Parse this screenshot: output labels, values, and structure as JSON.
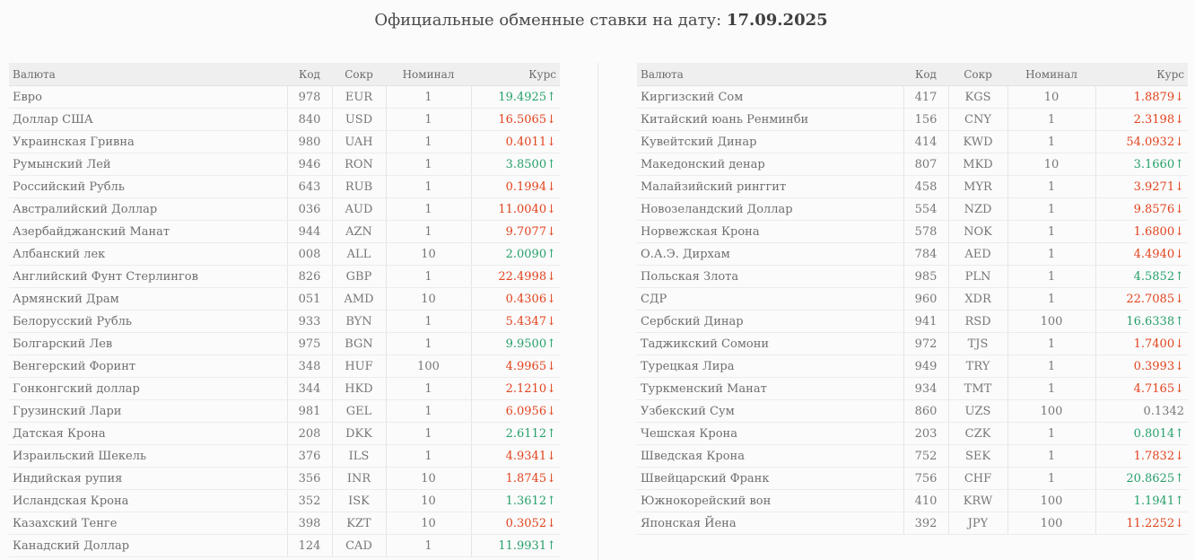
{
  "header": {
    "title": "Официальные обменные ставки на дату:",
    "date": "17.09.2025"
  },
  "columns": {
    "currency": "Валюта",
    "code": "Код",
    "abbr": "Сокр",
    "nominal": "Номинал",
    "rate": "Курс"
  },
  "colors": {
    "up": "#27a06a",
    "down": "#e2431e",
    "header_bg": "#efefef"
  },
  "left_rows": [
    {
      "name": "Евро",
      "code": "978",
      "abbr": "EUR",
      "nominal": "1",
      "rate": "19.4925↑",
      "trend": "up"
    },
    {
      "name": "Доллар США",
      "code": "840",
      "abbr": "USD",
      "nominal": "1",
      "rate": "16.5065↓",
      "trend": "down"
    },
    {
      "name": "Украинская Гривна",
      "code": "980",
      "abbr": "UAH",
      "nominal": "1",
      "rate": "0.4011↓",
      "trend": "down"
    },
    {
      "name": "Румынский Лей",
      "code": "946",
      "abbr": "RON",
      "nominal": "1",
      "rate": "3.8500↑",
      "trend": "up"
    },
    {
      "name": "Российский Рубль",
      "code": "643",
      "abbr": "RUB",
      "nominal": "1",
      "rate": "0.1994↓",
      "trend": "down"
    },
    {
      "name": "Австралийский Доллар",
      "code": "036",
      "abbr": "AUD",
      "nominal": "1",
      "rate": "11.0040↓",
      "trend": "down"
    },
    {
      "name": "Азербайджанский Манат",
      "code": "944",
      "abbr": "AZN",
      "nominal": "1",
      "rate": "9.7077↓",
      "trend": "down"
    },
    {
      "name": "Албанский лек",
      "code": "008",
      "abbr": "ALL",
      "nominal": "10",
      "rate": "2.0090↑",
      "trend": "up"
    },
    {
      "name": "Английский Фунт Стерлингов",
      "code": "826",
      "abbr": "GBP",
      "nominal": "1",
      "rate": "22.4998↓",
      "trend": "down"
    },
    {
      "name": "Армянский Драм",
      "code": "051",
      "abbr": "AMD",
      "nominal": "10",
      "rate": "0.4306↓",
      "trend": "down"
    },
    {
      "name": "Белорусский Рубль",
      "code": "933",
      "abbr": "BYN",
      "nominal": "1",
      "rate": "5.4347↓",
      "trend": "down"
    },
    {
      "name": "Болгарский Лев",
      "code": "975",
      "abbr": "BGN",
      "nominal": "1",
      "rate": "9.9500↑",
      "trend": "up"
    },
    {
      "name": "Венгерский Форинт",
      "code": "348",
      "abbr": "HUF",
      "nominal": "100",
      "rate": "4.9965↓",
      "trend": "down"
    },
    {
      "name": "Гонконгский доллар",
      "code": "344",
      "abbr": "HKD",
      "nominal": "1",
      "rate": "2.1210↓",
      "trend": "down"
    },
    {
      "name": "Грузинский Лари",
      "code": "981",
      "abbr": "GEL",
      "nominal": "1",
      "rate": "6.0956↓",
      "trend": "down"
    },
    {
      "name": "Датская Крона",
      "code": "208",
      "abbr": "DKK",
      "nominal": "1",
      "rate": "2.6112↑",
      "trend": "up"
    },
    {
      "name": "Израильский Шекель",
      "code": "376",
      "abbr": "ILS",
      "nominal": "1",
      "rate": "4.9341↓",
      "trend": "down"
    },
    {
      "name": "Индийская рупия",
      "code": "356",
      "abbr": "INR",
      "nominal": "10",
      "rate": "1.8745↓",
      "trend": "down"
    },
    {
      "name": "Исландская Крона",
      "code": "352",
      "abbr": "ISK",
      "nominal": "10",
      "rate": "1.3612↑",
      "trend": "up"
    },
    {
      "name": "Казахский Тенге",
      "code": "398",
      "abbr": "KZT",
      "nominal": "10",
      "rate": "0.3052↓",
      "trend": "down"
    },
    {
      "name": "Канадский Доллар",
      "code": "124",
      "abbr": "CAD",
      "nominal": "1",
      "rate": "11.9931↑",
      "trend": "up"
    }
  ],
  "right_rows": [
    {
      "name": "Киргизский Сом",
      "code": "417",
      "abbr": "KGS",
      "nominal": "10",
      "rate": "1.8879↓",
      "trend": "down"
    },
    {
      "name": "Китайский юань Ренминби",
      "code": "156",
      "abbr": "CNY",
      "nominal": "1",
      "rate": "2.3198↓",
      "trend": "down"
    },
    {
      "name": "Кувейтский Динар",
      "code": "414",
      "abbr": "KWD",
      "nominal": "1",
      "rate": "54.0932↓",
      "trend": "down"
    },
    {
      "name": "Македонский денар",
      "code": "807",
      "abbr": "MKD",
      "nominal": "10",
      "rate": "3.1660↑",
      "trend": "up"
    },
    {
      "name": "Малайзийский ринггит",
      "code": "458",
      "abbr": "MYR",
      "nominal": "1",
      "rate": "3.9271↓",
      "trend": "down"
    },
    {
      "name": "Новозеландский Доллар",
      "code": "554",
      "abbr": "NZD",
      "nominal": "1",
      "rate": "9.8576↓",
      "trend": "down"
    },
    {
      "name": "Норвежская Крона",
      "code": "578",
      "abbr": "NOK",
      "nominal": "1",
      "rate": "1.6800↓",
      "trend": "down"
    },
    {
      "name": "О.А.Э. Дирхам",
      "code": "784",
      "abbr": "AED",
      "nominal": "1",
      "rate": "4.4940↓",
      "trend": "down"
    },
    {
      "name": "Польская Злота",
      "code": "985",
      "abbr": "PLN",
      "nominal": "1",
      "rate": "4.5852↑",
      "trend": "up"
    },
    {
      "name": "СДР",
      "code": "960",
      "abbr": "XDR",
      "nominal": "1",
      "rate": "22.7085↓",
      "trend": "down"
    },
    {
      "name": "Сербский Динар",
      "code": "941",
      "abbr": "RSD",
      "nominal": "100",
      "rate": "16.6338↑",
      "trend": "up"
    },
    {
      "name": "Таджикский Сомони",
      "code": "972",
      "abbr": "TJS",
      "nominal": "1",
      "rate": "1.7400↓",
      "trend": "down"
    },
    {
      "name": "Турецкая Лира",
      "code": "949",
      "abbr": "TRY",
      "nominal": "1",
      "rate": "0.3993↓",
      "trend": "down"
    },
    {
      "name": "Туркменский Манат",
      "code": "934",
      "abbr": "TMT",
      "nominal": "1",
      "rate": "4.7165↓",
      "trend": "down"
    },
    {
      "name": "Узбекский Сум",
      "code": "860",
      "abbr": "UZS",
      "nominal": "100",
      "rate": "0.1342",
      "trend": "flat"
    },
    {
      "name": "Чешская Крона",
      "code": "203",
      "abbr": "CZK",
      "nominal": "1",
      "rate": "0.8014↑",
      "trend": "up"
    },
    {
      "name": "Шведская Крона",
      "code": "752",
      "abbr": "SEK",
      "nominal": "1",
      "rate": "1.7832↓",
      "trend": "down"
    },
    {
      "name": "Швейцарский Франк",
      "code": "756",
      "abbr": "CHF",
      "nominal": "1",
      "rate": "20.8625↑",
      "trend": "up"
    },
    {
      "name": "Южнокорейский вон",
      "code": "410",
      "abbr": "KRW",
      "nominal": "100",
      "rate": "1.1941↑",
      "trend": "up"
    },
    {
      "name": "Японская Йена",
      "code": "392",
      "abbr": "JPY",
      "nominal": "100",
      "rate": "11.2252↓",
      "trend": "down"
    }
  ]
}
